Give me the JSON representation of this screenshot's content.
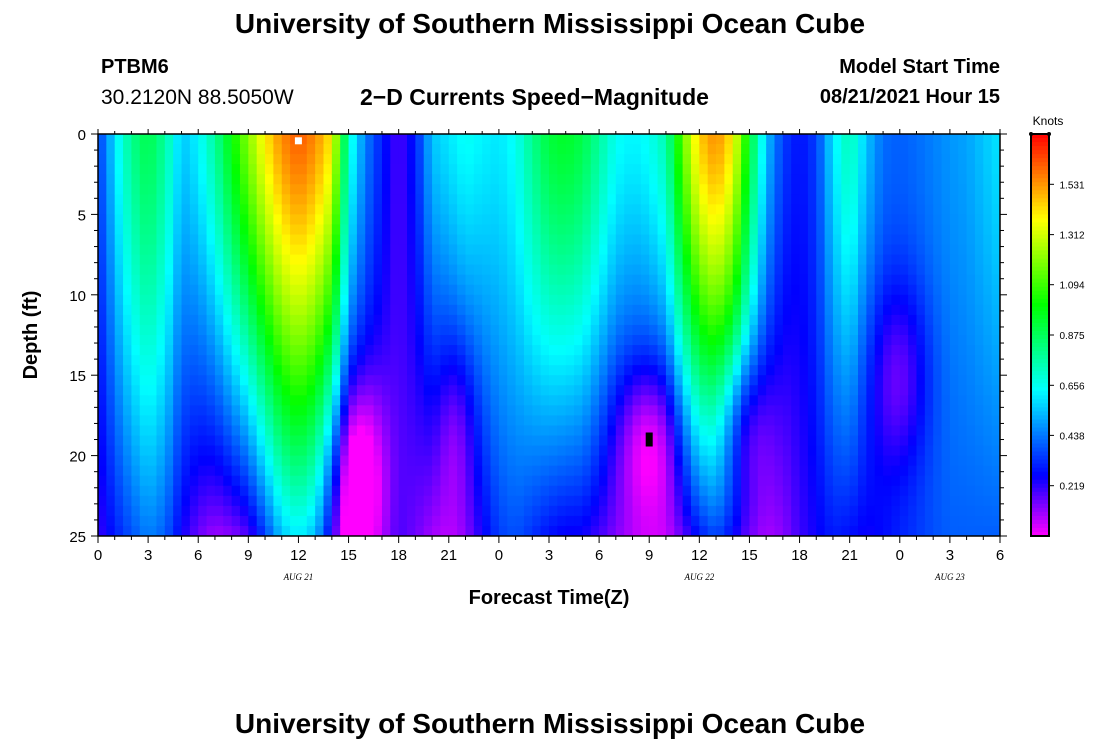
{
  "header": {
    "title": "University of Southern Mississippi Ocean Cube",
    "station_id": "PTBM6",
    "coordinates": "30.2120N  88.5050W",
    "subtitle": "2−D Currents Speed−Magnitude",
    "start_label": "Model Start Time",
    "start_time": "08/21/2021 Hour 15"
  },
  "footer": {
    "title": "University of Southern Mississippi Ocean Cube"
  },
  "chart_data": {
    "type": "heatmap",
    "title": "2−D Currents Speed−Magnitude",
    "xlabel": "Forecast Time(Z)",
    "ylabel": "Depth (ft)",
    "x_tick_labels": [
      "0",
      "3",
      "6",
      "9",
      "12",
      "15",
      "18",
      "21",
      "0",
      "3",
      "6",
      "9",
      "12",
      "15",
      "18",
      "21",
      "0",
      "3",
      "6"
    ],
    "date_labels": [
      {
        "label": "AUG 21",
        "at_hours": 12
      },
      {
        "label": "AUG 22",
        "at_hours": 36
      },
      {
        "label": "AUG 23",
        "at_hours": 51
      }
    ],
    "x_range_hours": [
      0,
      54
    ],
    "y_ticks": [
      0,
      5,
      10,
      15,
      20,
      25
    ],
    "y_range_ft": [
      0,
      25
    ],
    "colorbar": {
      "unit": "Knots",
      "ticks": [
        1.531,
        1.312,
        1.094,
        0.875,
        0.656,
        0.438,
        0.219
      ],
      "tick_labels": [
        "1.531",
        "1.312",
        "1.094",
        "0.875",
        "0.656",
        "0.438",
        "0.219"
      ],
      "range": [
        0,
        1.75
      ]
    },
    "columns": [
      {
        "t": 0.0,
        "s": 0.35,
        "b": 0.2
      },
      {
        "t": 0.5,
        "s": 0.45,
        "b": 0.25
      },
      {
        "t": 1.0,
        "s": 0.6,
        "b": 0.3
      },
      {
        "t": 2.0,
        "s": 0.8,
        "b": 0.38
      },
      {
        "t": 3.0,
        "s": 0.9,
        "b": 0.45
      },
      {
        "t": 4.0,
        "s": 0.78,
        "b": 0.4
      },
      {
        "t": 5.0,
        "s": 0.55,
        "b": 0.25
      },
      {
        "t": 6.0,
        "s": 0.62,
        "b": 0.15
      },
      {
        "t": 7.0,
        "s": 0.78,
        "b": 0.1
      },
      {
        "t": 8.0,
        "s": 1.0,
        "b": 0.12
      },
      {
        "t": 9.0,
        "s": 1.2,
        "b": 0.18
      },
      {
        "t": 10.0,
        "s": 1.4,
        "b": 0.35
      },
      {
        "t": 11.0,
        "s": 1.55,
        "b": 0.55
      },
      {
        "t": 12.0,
        "s": 1.62,
        "b": 0.62
      },
      {
        "t": 13.0,
        "s": 1.55,
        "b": 0.55
      },
      {
        "t": 14.0,
        "s": 1.4,
        "b": 0.3
      },
      {
        "t": 15.0,
        "s": 0.7,
        "b": 0.1
      },
      {
        "t": 16.0,
        "s": 0.45,
        "b": 0.12
      },
      {
        "t": 17.0,
        "s": 0.3,
        "b": 0.15
      },
      {
        "t": 18.0,
        "s": 0.18,
        "b": 0.2
      },
      {
        "t": 19.0,
        "s": 0.3,
        "b": 0.15
      },
      {
        "t": 20.0,
        "s": 0.55,
        "b": 0.1
      },
      {
        "t": 21.0,
        "s": 0.6,
        "b": 0.1
      },
      {
        "t": 22.0,
        "s": 0.65,
        "b": 0.15
      },
      {
        "t": 23.0,
        "s": 0.62,
        "b": 0.25
      },
      {
        "t": 24.0,
        "s": 0.6,
        "b": 0.35
      },
      {
        "t": 25.0,
        "s": 0.65,
        "b": 0.38
      },
      {
        "t": 26.0,
        "s": 0.8,
        "b": 0.33
      },
      {
        "t": 27.0,
        "s": 0.92,
        "b": 0.28
      },
      {
        "t": 28.0,
        "s": 0.95,
        "b": 0.25
      },
      {
        "t": 29.0,
        "s": 0.9,
        "b": 0.25
      },
      {
        "t": 30.0,
        "s": 0.78,
        "b": 0.2
      },
      {
        "t": 31.0,
        "s": 0.65,
        "b": 0.15
      },
      {
        "t": 32.0,
        "s": 0.62,
        "b": 0.12
      },
      {
        "t": 33.0,
        "s": 0.65,
        "b": 0.1
      },
      {
        "t": 34.0,
        "s": 0.75,
        "b": 0.1
      },
      {
        "t": 35.0,
        "s": 1.15,
        "b": 0.18
      },
      {
        "t": 36.0,
        "s": 1.45,
        "b": 0.3
      },
      {
        "t": 37.0,
        "s": 1.55,
        "b": 0.38
      },
      {
        "t": 38.0,
        "s": 1.4,
        "b": 0.3
      },
      {
        "t": 39.0,
        "s": 0.95,
        "b": 0.18
      },
      {
        "t": 40.0,
        "s": 0.55,
        "b": 0.1
      },
      {
        "t": 41.0,
        "s": 0.35,
        "b": 0.12
      },
      {
        "t": 42.0,
        "s": 0.28,
        "b": 0.2
      },
      {
        "t": 43.0,
        "s": 0.35,
        "b": 0.25
      },
      {
        "t": 44.0,
        "s": 0.6,
        "b": 0.3
      },
      {
        "t": 45.0,
        "s": 0.75,
        "b": 0.28
      },
      {
        "t": 46.0,
        "s": 0.55,
        "b": 0.25
      },
      {
        "t": 47.0,
        "s": 0.42,
        "b": 0.28
      },
      {
        "t": 48.0,
        "s": 0.4,
        "b": 0.32
      },
      {
        "t": 49.0,
        "s": 0.42,
        "b": 0.35
      },
      {
        "t": 50.0,
        "s": 0.45,
        "b": 0.38
      },
      {
        "t": 51.0,
        "s": 0.48,
        "b": 0.4
      },
      {
        "t": 52.0,
        "s": 0.5,
        "b": 0.4
      },
      {
        "t": 53.0,
        "s": 0.55,
        "b": 0.4
      },
      {
        "t": 54.0,
        "s": 0.6,
        "b": 0.4
      }
    ],
    "dips": [
      {
        "t": 15.5,
        "d": 21,
        "w": 1.6,
        "dd": 6,
        "a": 0.3
      },
      {
        "t": 21.5,
        "d": 18,
        "w": 1.2,
        "dd": 6,
        "a": 0.15
      },
      {
        "t": 33.0,
        "d": 19,
        "w": 2.0,
        "dd": 5,
        "a": 0.25
      },
      {
        "t": 38.5,
        "d": 18,
        "w": 1.5,
        "dd": 5,
        "a": 0.25
      },
      {
        "t": 48.0,
        "d": 15,
        "w": 1.8,
        "dd": 6,
        "a": 0.2
      }
    ],
    "markers": [
      {
        "t": 12.0,
        "d": 0.3,
        "color": "#ffffff"
      },
      {
        "t": 33.0,
        "d": 19.0,
        "color": "#000000"
      }
    ]
  }
}
